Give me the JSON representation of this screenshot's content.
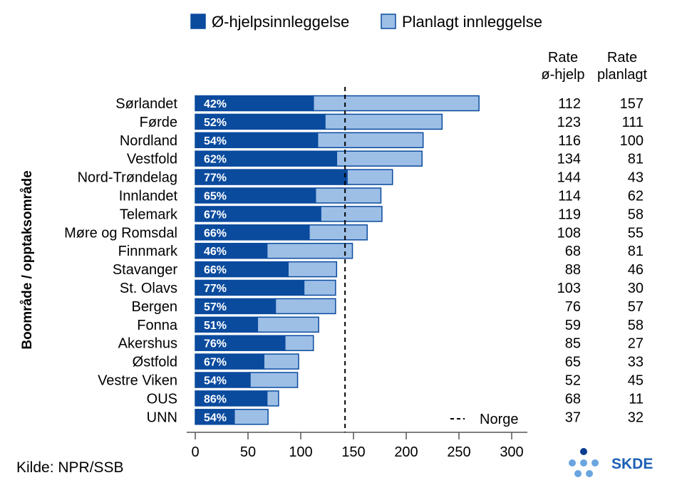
{
  "chart_data": {
    "type": "bar",
    "stacked": true,
    "orientation": "horizontal",
    "ylabel": "Boområde / opptaksområde",
    "xlim": [
      0,
      300
    ],
    "xticks": [
      0,
      50,
      100,
      150,
      200,
      250,
      300
    ],
    "categories": [
      "Sørlandet",
      "Førde",
      "Nordland",
      "Vestfold",
      "Nord-Trøndelag",
      "Innlandet",
      "Telemark",
      "Møre og Romsdal",
      "Finnmark",
      "Stavanger",
      "St. Olavs",
      "Bergen",
      "Fonna",
      "Akershus",
      "Østfold",
      "Vestre Viken",
      "OUS",
      "UNN"
    ],
    "series": [
      {
        "name": "Ø-hjelpsinnleggelse",
        "color": "#0b4b9e",
        "values": [
          112,
          123,
          116,
          134,
          144,
          114,
          119,
          108,
          68,
          88,
          103,
          76,
          59,
          85,
          65,
          52,
          68,
          37
        ]
      },
      {
        "name": "Planlagt innleggelse",
        "color": "#9dbfe6",
        "values": [
          157,
          111,
          100,
          81,
          43,
          62,
          58,
          55,
          81,
          46,
          30,
          57,
          58,
          27,
          33,
          45,
          11,
          32
        ]
      }
    ],
    "percent_labels": [
      "42%",
      "52%",
      "54%",
      "62%",
      "77%",
      "65%",
      "67%",
      "66%",
      "46%",
      "66%",
      "77%",
      "57%",
      "51%",
      "76%",
      "67%",
      "54%",
      "86%",
      "54%"
    ],
    "reference_line": {
      "label": "Norge",
      "value": 142
    },
    "table_columns": [
      {
        "header_line1": "Rate",
        "header_line2": "ø-hjelp"
      },
      {
        "header_line1": "Rate",
        "header_line2": "planlagt"
      }
    ],
    "legend_position": "top"
  },
  "source": "Kilde: NPR/SSB",
  "logo_text": "SKDE"
}
